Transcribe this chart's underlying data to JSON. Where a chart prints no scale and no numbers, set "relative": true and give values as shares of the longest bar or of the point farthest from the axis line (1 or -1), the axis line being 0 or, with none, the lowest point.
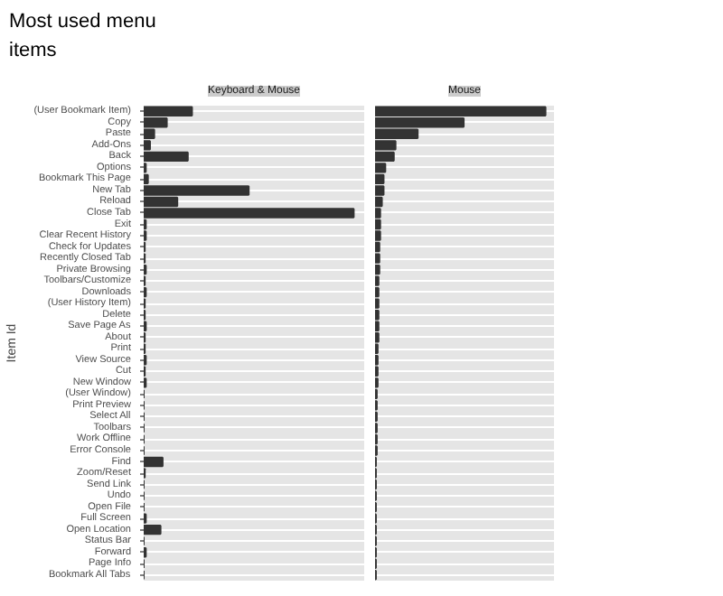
{
  "chart_data": [
    {
      "type": "bar",
      "orientation": "horizontal",
      "relative": true,
      "title": "Keyboard & Mouse",
      "ylabel": "Item Id",
      "annotations": [
        "Most used menu items"
      ],
      "grid": "y",
      "tick_labels": "y",
      "categories": [
        "(User Bookmark Item)",
        "Copy",
        "Paste",
        "Add-Ons",
        "Back",
        "Options",
        "Bookmark This Page",
        "New Tab",
        "Reload",
        "Close Tab",
        "Exit",
        "Clear Recent History",
        "Check for Updates",
        "Recently Closed Tab",
        "Private Browsing",
        "Toolbars/Customize",
        "Downloads",
        "(User History Item)",
        "Delete",
        "Save Page As",
        "About",
        "Print",
        "View Source",
        "Cut",
        "New Window",
        "(User Window)",
        "Print Preview",
        "Select All",
        "Toolbars",
        "Work Offline",
        "Error Console",
        "Find",
        "Zoom/Reset",
        "Send Link",
        "Undo",
        "Open File",
        "Full Screen",
        "Open Location",
        "Status Bar",
        "Forward",
        "Page Info",
        "Bookmark All Tabs"
      ],
      "series": [
        {
          "color": "#333333",
          "values": [
            0.23,
            0.11,
            0.05,
            0.03,
            0.21,
            0.01,
            0.02,
            0.5,
            0.16,
            1,
            0.01,
            0.01,
            0.005,
            0.005,
            0.01,
            0.005,
            0.01,
            0.005,
            0.005,
            0.01,
            0.005,
            0.005,
            0.01,
            0.005,
            0.01,
            0,
            0,
            0,
            0,
            0,
            0,
            0.09,
            0.005,
            0,
            0,
            0,
            0.01,
            0.08,
            0,
            0.01,
            0,
            0
          ]
        }
      ]
    },
    {
      "type": "bar",
      "orientation": "horizontal",
      "relative": true,
      "title": "Mouse",
      "grid": "y",
      "tick_labels": false,
      "categories": [
        null,
        null,
        null,
        null,
        null,
        null,
        null,
        null,
        null,
        null,
        null,
        null,
        null,
        null,
        null,
        null,
        null,
        null,
        null,
        null,
        null,
        null,
        null,
        null,
        null,
        null,
        null,
        null,
        null,
        null,
        null,
        null,
        null,
        null,
        null,
        null,
        null,
        null,
        null,
        null,
        null,
        null
      ],
      "series": [
        {
          "color": "#333333",
          "values": [
            1,
            0.52,
            0.25,
            0.12,
            0.11,
            0.06,
            0.05,
            0.05,
            0.04,
            0.03,
            0.03,
            0.03,
            0.025,
            0.025,
            0.025,
            0.02,
            0.02,
            0.02,
            0.02,
            0.02,
            0.02,
            0.015,
            0.015,
            0.015,
            0.015,
            0.01,
            0.01,
            0.01,
            0.01,
            0.01,
            0.01,
            0.005,
            0.005,
            0.005,
            0.005,
            0.005,
            0.005,
            0.005,
            0.005,
            0.005,
            0.005,
            0.005
          ]
        }
      ]
    }
  ]
}
